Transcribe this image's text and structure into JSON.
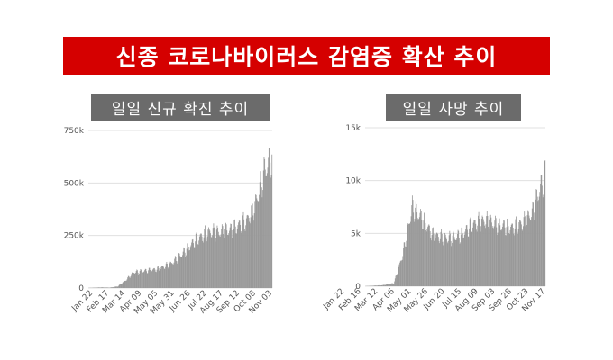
{
  "header": {
    "title": "신종 코로나바이러스 감염증 확산 추이"
  },
  "colors": {
    "title_bg": "#d50000",
    "panel_title_bg": "#6b6b6b",
    "bar": "#999999",
    "grid": "#e0e0e0"
  },
  "chart_data": [
    {
      "type": "bar",
      "title": "일일 신규 확진 추이",
      "ylim": [
        0,
        750000
      ],
      "y_ticks": [
        {
          "label": "0",
          "value": 0
        },
        {
          "label": "250k",
          "value": 250000
        },
        {
          "label": "500k",
          "value": 500000
        },
        {
          "label": "750k",
          "value": 750000
        }
      ],
      "x_ticks": [
        "Jan 22",
        "Feb 17",
        "Mar 14",
        "Apr 09",
        "May 05",
        "May 31",
        "Jun 26",
        "Jul 22",
        "Aug 17",
        "Sep 12",
        "Oct 08",
        "Nov 03"
      ],
      "date_range": [
        "2020-01-22",
        "2020-11-18"
      ],
      "grid": true,
      "series_profile": [
        [
          "2020-01-22",
          500
        ],
        [
          "2020-02-12",
          3000
        ],
        [
          "2020-02-26",
          2000
        ],
        [
          "2020-03-10",
          8000
        ],
        [
          "2020-03-22",
          35000
        ],
        [
          "2020-04-05",
          75000
        ],
        [
          "2020-04-25",
          82000
        ],
        [
          "2020-05-15",
          90000
        ],
        [
          "2020-06-05",
          115000
        ],
        [
          "2020-06-25",
          165000
        ],
        [
          "2020-07-15",
          225000
        ],
        [
          "2020-08-05",
          265000
        ],
        [
          "2020-08-25",
          265000
        ],
        [
          "2020-09-15",
          280000
        ],
        [
          "2020-10-08",
          320000
        ],
        [
          "2020-10-22",
          400000
        ],
        [
          "2020-11-05",
          550000
        ],
        [
          "2020-11-18",
          630000
        ]
      ]
    },
    {
      "type": "bar",
      "title": "일일 사망 추이",
      "ylim": [
        0,
        15000
      ],
      "y_ticks": [
        {
          "label": "0",
          "value": 0
        },
        {
          "label": "5k",
          "value": 5000
        },
        {
          "label": "10k",
          "value": 10000
        },
        {
          "label": "15k",
          "value": 15000
        }
      ],
      "x_ticks": [
        "Jan 22",
        "Feb 16",
        "Mar 12",
        "Apr 06",
        "May 01",
        "May 26",
        "Jun 20",
        "Jul 15",
        "Aug 09",
        "Sep 03",
        "Sep 28",
        "Oct 23",
        "Nov 17"
      ],
      "date_range": [
        "2020-01-22",
        "2020-11-20"
      ],
      "grid": true,
      "series_profile": [
        [
          "2020-01-22",
          10
        ],
        [
          "2020-02-20",
          100
        ],
        [
          "2020-03-10",
          300
        ],
        [
          "2020-03-25",
          3000
        ],
        [
          "2020-04-10",
          7500
        ],
        [
          "2020-04-25",
          6500
        ],
        [
          "2020-05-15",
          4800
        ],
        [
          "2020-06-10",
          4500
        ],
        [
          "2020-07-01",
          4800
        ],
        [
          "2020-07-20",
          5800
        ],
        [
          "2020-08-10",
          6200
        ],
        [
          "2020-09-01",
          5800
        ],
        [
          "2020-09-25",
          5500
        ],
        [
          "2020-10-15",
          6000
        ],
        [
          "2020-10-30",
          7000
        ],
        [
          "2020-11-10",
          9000
        ],
        [
          "2020-11-20",
          10500
        ]
      ]
    }
  ]
}
